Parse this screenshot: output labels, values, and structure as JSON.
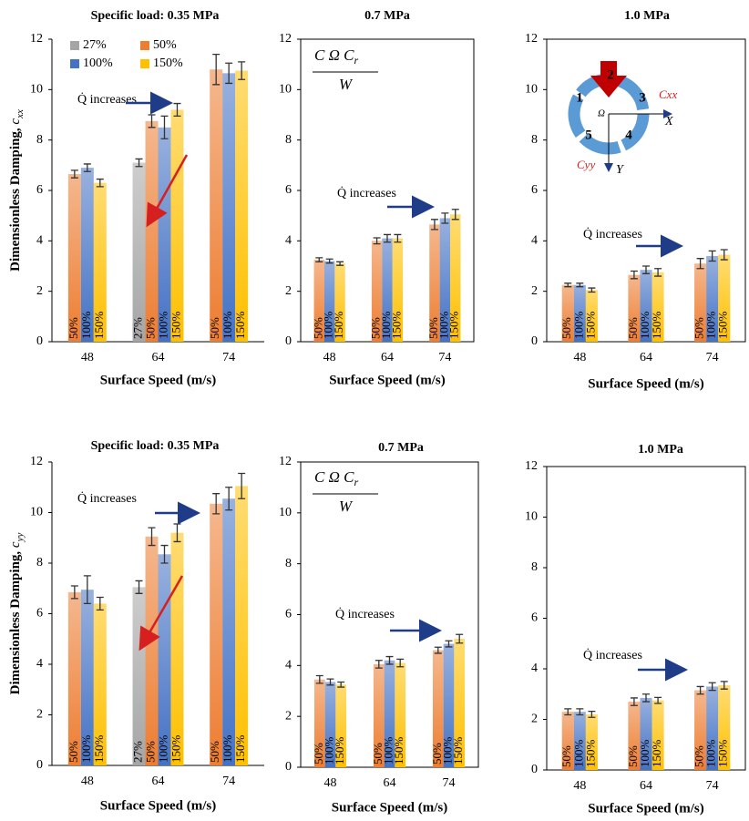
{
  "chart_data": [
    {
      "type": "bar",
      "title": "Specific load: 0.35 MPa",
      "xlabel": "Surface Speed (m/s)",
      "ylabel": "Dimensionless Damping, ",
      "ylabel_var": "c",
      "ylabel_sub": "xx",
      "categories": [
        "48",
        "64",
        "74"
      ],
      "ylim": [
        0,
        12
      ],
      "yticks": [
        0,
        2,
        4,
        6,
        8,
        10,
        12
      ],
      "legend": "upper left",
      "annotation": "Q̇ increases",
      "series": [
        {
          "name": "27%",
          "color": "#a5a5a5",
          "values": [
            null,
            7.1,
            null
          ],
          "errors": [
            null,
            0.15,
            null
          ]
        },
        {
          "name": "50%",
          "color": "#ed7d31",
          "values": [
            6.65,
            8.75,
            10.8
          ],
          "errors": [
            0.15,
            0.25,
            0.6
          ]
        },
        {
          "name": "100%",
          "color": "#4472c4",
          "values": [
            6.9,
            8.5,
            10.65
          ],
          "errors": [
            0.15,
            0.45,
            0.4
          ]
        },
        {
          "name": "150%",
          "color": "#ffc000",
          "values": [
            6.3,
            9.2,
            10.75
          ],
          "errors": [
            0.15,
            0.25,
            0.35
          ]
        }
      ]
    },
    {
      "type": "bar",
      "title": "0.7 MPa",
      "xlabel": "Surface Speed (m/s)",
      "categories": [
        "48",
        "64",
        "74"
      ],
      "ylim": [
        0,
        12
      ],
      "yticks": [
        0,
        2,
        4,
        6,
        8,
        10,
        12
      ],
      "annotation": "Q̇ increases",
      "formula": {
        "numerator": "C Ω C",
        "numerator_sub": "r",
        "denominator": "W"
      },
      "series": [
        {
          "name": "50%",
          "color": "#ed7d31",
          "values": [
            3.25,
            4.0,
            4.65
          ],
          "errors": [
            0.08,
            0.12,
            0.2
          ]
        },
        {
          "name": "100%",
          "color": "#4472c4",
          "values": [
            3.2,
            4.1,
            4.9
          ],
          "errors": [
            0.08,
            0.15,
            0.2
          ]
        },
        {
          "name": "150%",
          "color": "#ffc000",
          "values": [
            3.1,
            4.1,
            5.05
          ],
          "errors": [
            0.07,
            0.15,
            0.2
          ]
        }
      ]
    },
    {
      "type": "bar",
      "title": "1.0 MPa",
      "xlabel": "Surface Speed (m/s)",
      "categories": [
        "48",
        "64",
        "74"
      ],
      "ylim": [
        0,
        12
      ],
      "yticks": [
        0,
        2,
        4,
        6,
        8,
        10,
        12
      ],
      "annotation": "Q̇ increases",
      "diagram": {
        "pads": [
          "1",
          "2",
          "3",
          "4",
          "5"
        ],
        "omega": "Ω",
        "x_force": "Cxx",
        "x_axis": "X",
        "y_force": "Cyy",
        "y_axis": "Y"
      },
      "series": [
        {
          "name": "50%",
          "color": "#ed7d31",
          "values": [
            2.25,
            2.65,
            3.1
          ],
          "errors": [
            0.07,
            0.15,
            0.2
          ]
        },
        {
          "name": "100%",
          "color": "#4472c4",
          "values": [
            2.25,
            2.85,
            3.4
          ],
          "errors": [
            0.07,
            0.15,
            0.2
          ]
        },
        {
          "name": "150%",
          "color": "#ffc000",
          "values": [
            2.05,
            2.75,
            3.45
          ],
          "errors": [
            0.08,
            0.15,
            0.2
          ]
        }
      ]
    },
    {
      "type": "bar",
      "title": "Specific load: 0.35 MPa",
      "xlabel": "Surface Speed (m/s)",
      "ylabel": "Dimensionless Damping, ",
      "ylabel_var": "c",
      "ylabel_sub": "yy",
      "categories": [
        "48",
        "64",
        "74"
      ],
      "ylim": [
        0,
        12
      ],
      "yticks": [
        0,
        2,
        4,
        6,
        8,
        10,
        12
      ],
      "annotation": "Q̇ increases",
      "series": [
        {
          "name": "27%",
          "color": "#a5a5a5",
          "values": [
            null,
            7.05,
            null
          ],
          "errors": [
            null,
            0.25,
            null
          ]
        },
        {
          "name": "50%",
          "color": "#ed7d31",
          "values": [
            6.85,
            9.05,
            10.35
          ],
          "errors": [
            0.25,
            0.35,
            0.4
          ]
        },
        {
          "name": "100%",
          "color": "#4472c4",
          "values": [
            6.95,
            8.35,
            10.55
          ],
          "errors": [
            0.55,
            0.35,
            0.45
          ]
        },
        {
          "name": "150%",
          "color": "#ffc000",
          "values": [
            6.4,
            9.2,
            11.05
          ],
          "errors": [
            0.25,
            0.35,
            0.5
          ]
        }
      ]
    },
    {
      "type": "bar",
      "title": "0.7 MPa",
      "xlabel": "Surface Speed (m/s)",
      "categories": [
        "48",
        "64",
        "74"
      ],
      "ylim": [
        0,
        12
      ],
      "yticks": [
        0,
        2,
        4,
        6,
        8,
        10,
        12
      ],
      "annotation": "Q̇ increases",
      "formula": {
        "numerator": "C Ω C",
        "numerator_sub": "r",
        "denominator": "W"
      },
      "series": [
        {
          "name": "50%",
          "color": "#ed7d31",
          "values": [
            3.45,
            4.05,
            4.6
          ],
          "errors": [
            0.15,
            0.15,
            0.12
          ]
        },
        {
          "name": "100%",
          "color": "#4472c4",
          "values": [
            3.35,
            4.2,
            4.85
          ],
          "errors": [
            0.12,
            0.15,
            0.12
          ]
        },
        {
          "name": "150%",
          "color": "#ffc000",
          "values": [
            3.25,
            4.1,
            5.05
          ],
          "errors": [
            0.1,
            0.15,
            0.17
          ]
        }
      ]
    },
    {
      "type": "bar",
      "title": "1.0 MPa",
      "xlabel": "Surface Speed (m/s)",
      "categories": [
        "48",
        "64",
        "74"
      ],
      "ylim": [
        0,
        12
      ],
      "yticks": [
        0,
        2,
        4,
        6,
        8,
        10,
        12
      ],
      "annotation": "Q̇ increases",
      "series": [
        {
          "name": "50%",
          "color": "#ed7d31",
          "values": [
            2.3,
            2.7,
            3.15
          ],
          "errors": [
            0.12,
            0.15,
            0.15
          ]
        },
        {
          "name": "100%",
          "color": "#4472c4",
          "values": [
            2.3,
            2.85,
            3.3
          ],
          "errors": [
            0.12,
            0.15,
            0.15
          ]
        },
        {
          "name": "150%",
          "color": "#ffc000",
          "values": [
            2.2,
            2.75,
            3.35
          ],
          "errors": [
            0.12,
            0.12,
            0.15
          ]
        }
      ]
    }
  ]
}
